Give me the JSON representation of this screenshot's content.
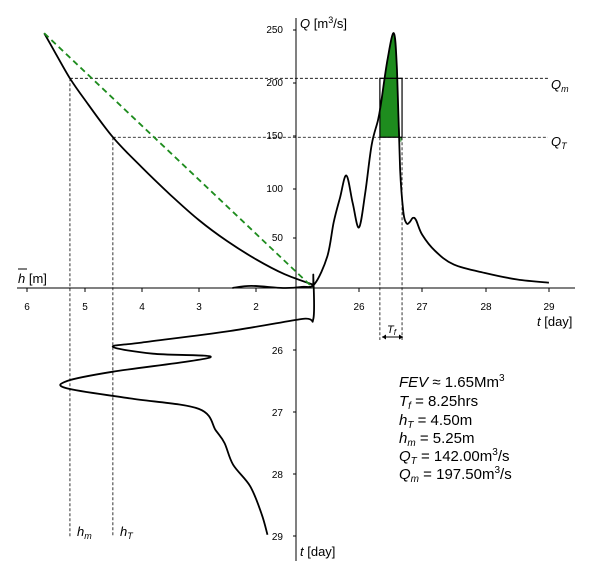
{
  "chart_data": [
    {
      "type": "line",
      "panel": "hydrograph",
      "xlabel": "t [day]",
      "ylabel": "Q [m³/s]",
      "xticks": [
        "26",
        "27",
        "28",
        "29"
      ],
      "yticks": [
        "50",
        "100",
        "150",
        "200",
        "250"
      ],
      "xlim": [
        24.0,
        29.4
      ],
      "ylim": [
        0,
        258
      ],
      "series": [
        {
          "x": [
            24.0,
            24.3,
            24.8,
            25.1,
            25.3,
            25.5,
            25.6,
            25.7,
            25.8,
            25.9,
            26.0,
            26.1,
            26.2,
            26.3,
            26.35,
            26.45,
            26.55,
            26.6,
            26.65,
            26.7,
            26.75,
            26.8,
            26.85,
            26.9,
            27.0,
            27.2,
            27.5,
            28.0,
            28.5,
            29.0
          ],
          "y": [
            0,
            2,
            0,
            1,
            4,
            30,
            62,
            85,
            106,
            80,
            57,
            90,
            135,
            158,
            175,
            215,
            240,
            205,
            112,
            72,
            61,
            62,
            66,
            64,
            50,
            35,
            22,
            14,
            8,
            5
          ]
        }
      ],
      "reference_lines": [
        {
          "label": "Q_m",
          "display": "Qm",
          "value": 197.5
        },
        {
          "label": "Q_T",
          "display": "QT",
          "value": 142.0
        }
      ],
      "shaded_region": {
        "x_start": 26.33,
        "x_end": 26.68,
        "color": "#1e8c1e"
      },
      "annotation": {
        "label": "Tf",
        "x_start": 26.33,
        "x_end": 26.68
      }
    },
    {
      "type": "line",
      "panel": "rating_curve",
      "xlabel": "h̄ [m]",
      "xticks": [
        "6",
        "5",
        "4",
        "3",
        "2"
      ],
      "x": [
        5.7,
        5.5,
        5.25,
        5.0,
        4.5,
        4.0,
        3.5,
        3.0,
        2.5,
        2.0,
        1.5,
        1.0
      ],
      "y": [
        240,
        221,
        197.5,
        178,
        142,
        114,
        88,
        64,
        44,
        27,
        13,
        3
      ],
      "dashed_chord": {
        "from": [
          5.7,
          240
        ],
        "to": [
          1.0,
          0
        ],
        "color": "#1e8c1e"
      }
    },
    {
      "type": "line",
      "panel": "stage_hydrograph",
      "ylabel": "t [day]",
      "yticks": [
        "26",
        "27",
        "28",
        "29"
      ],
      "ylim": [
        24.8,
        29.4
      ],
      "x": [
        1.0,
        1.0,
        1.2,
        2.5,
        4.0,
        4.5,
        3.8,
        2.8,
        4.5,
        5.3,
        5.3,
        4.2,
        3.0,
        2.7,
        2.55,
        2.4,
        2.1,
        1.9,
        1.8
      ],
      "y": [
        24.8,
        25.5,
        25.5,
        25.7,
        25.88,
        25.95,
        26.06,
        26.12,
        26.35,
        26.5,
        26.62,
        26.78,
        26.95,
        27.3,
        27.5,
        27.85,
        28.2,
        28.65,
        28.98
      ]
    }
  ],
  "annotations": {
    "h_m_label": "hm",
    "h_T_label": "hT",
    "h_m_value": 5.25,
    "h_T_value": 4.5
  },
  "stats": [
    "FEV ≈ 1.65Mm³",
    "Tf = 8.25hrs",
    "hT = 4.50m",
    "hm = 5.25m",
    "QT = 142.00m³/s",
    "Qm = 197.50m³/s"
  ],
  "colors": {
    "accent": "#1e8c1e",
    "curve": "#000000"
  }
}
